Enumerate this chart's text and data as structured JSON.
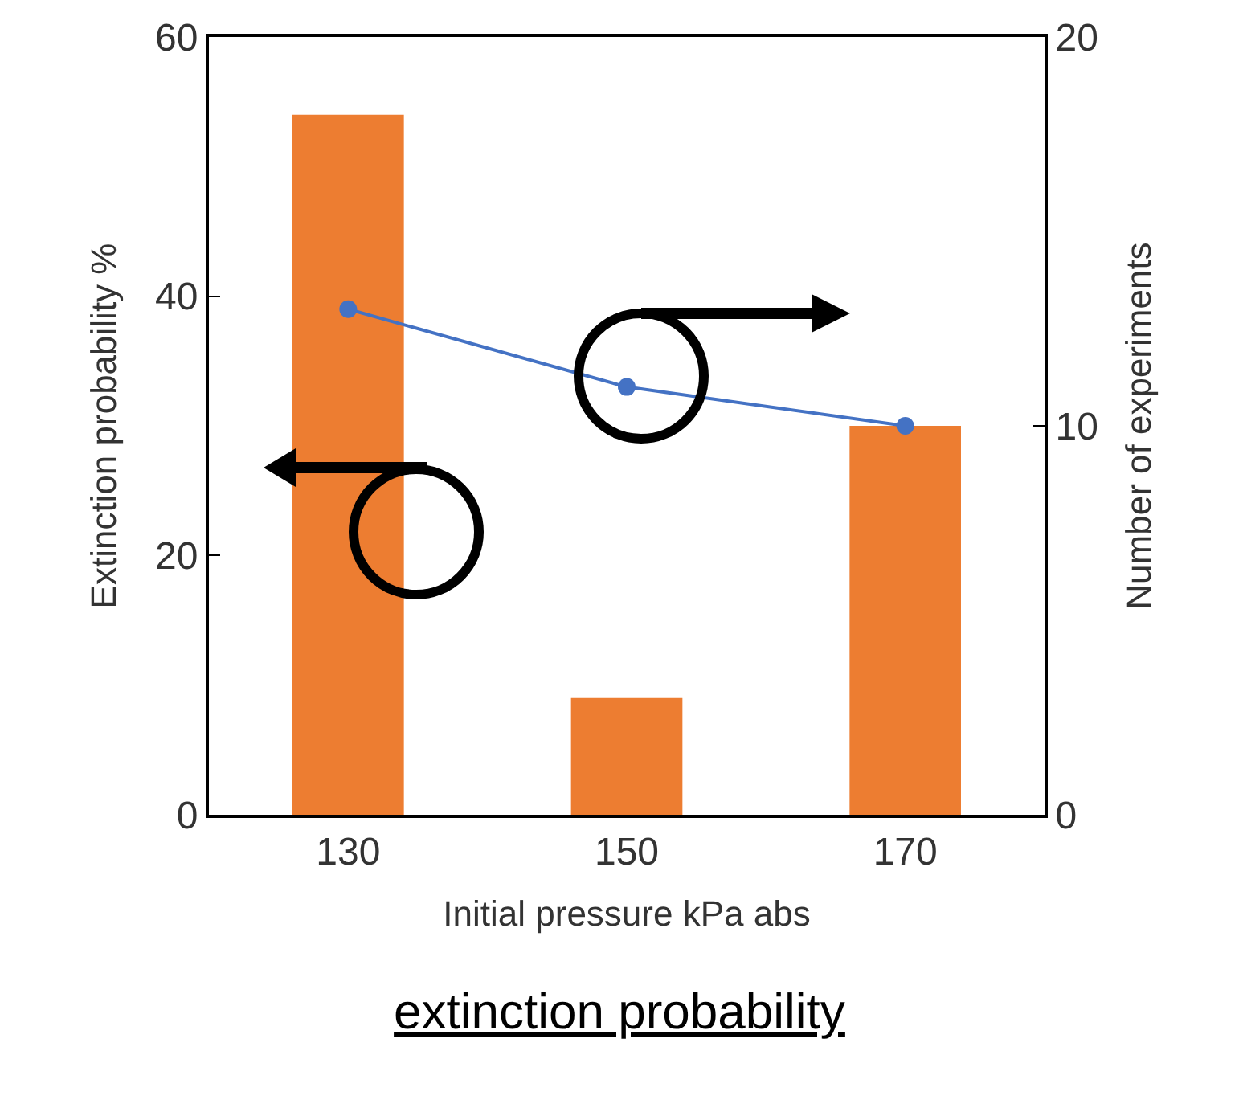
{
  "chart_data": {
    "type": "bar",
    "xlabel": "Initial pressure kPa abs",
    "ylabel": "Extinction probability %",
    "y2label": "Number of experiments",
    "categories": [
      "130",
      "150",
      "170"
    ],
    "series": [
      {
        "color": "#ed7d31",
        "values": [
          54,
          9,
          30
        ]
      },
      {
        "type": "line",
        "axis": "y2",
        "color": "#4472c4",
        "values": [
          13,
          11,
          10
        ],
        "marker": "circle"
      }
    ],
    "ylim": [
      0,
      60
    ],
    "yticks": [
      0,
      20,
      40,
      60
    ],
    "y2lim": [
      0,
      20
    ],
    "y2ticks": [
      0,
      10,
      20
    ],
    "grid": false,
    "legend": false,
    "annotations": [
      "extinction probability"
    ]
  }
}
